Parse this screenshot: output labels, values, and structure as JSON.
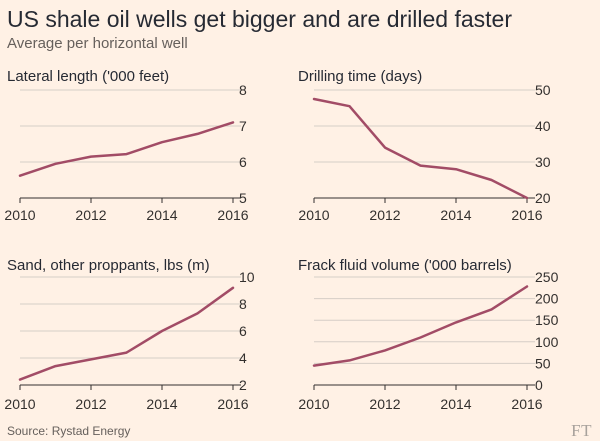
{
  "title": "US shale oil wells get bigger and are drilled faster",
  "subtitle": "Average per horizontal well",
  "source": "Source: Rystad Energy",
  "logo": "FT",
  "colors": {
    "background": "#fff1e5",
    "series": "#a24c66",
    "grid": "#d6cec6",
    "text": "#33302e"
  },
  "chart_data": [
    {
      "type": "line",
      "title": "Lateral length ('000 feet)",
      "x": [
        2010,
        2011,
        2012,
        2013,
        2014,
        2015,
        2016
      ],
      "values": [
        5.62,
        5.95,
        6.15,
        6.22,
        6.55,
        6.78,
        7.1
      ],
      "xticks": [
        "2010",
        "2012",
        "2014",
        "2016"
      ],
      "yticks": [
        "5",
        "6",
        "7",
        "8"
      ],
      "ylim": [
        5,
        8
      ],
      "grid": true
    },
    {
      "type": "line",
      "title": "Drilling time (days)",
      "x": [
        2010,
        2011,
        2012,
        2013,
        2014,
        2015,
        2016
      ],
      "values": [
        47.5,
        45.5,
        34,
        29,
        28,
        25,
        20
      ],
      "xticks": [
        "2010",
        "2012",
        "2014",
        "2016"
      ],
      "yticks": [
        "20",
        "30",
        "40",
        "50"
      ],
      "ylim": [
        20,
        50
      ],
      "grid": true
    },
    {
      "type": "line",
      "title": "Sand, other proppants, lbs (m)",
      "x": [
        2010,
        2011,
        2012,
        2013,
        2014,
        2015,
        2016
      ],
      "values": [
        2.4,
        3.4,
        3.9,
        4.4,
        6.0,
        7.3,
        9.2
      ],
      "xticks": [
        "2010",
        "2012",
        "2014",
        "2016"
      ],
      "yticks": [
        "2",
        "4",
        "6",
        "8",
        "10"
      ],
      "ylim": [
        2,
        10
      ],
      "grid": true
    },
    {
      "type": "line",
      "title": "Frack fluid volume ('000 barrels)",
      "x": [
        2010,
        2011,
        2012,
        2013,
        2014,
        2015,
        2016
      ],
      "values": [
        45,
        57,
        80,
        110,
        145,
        175,
        228
      ],
      "xticks": [
        "2010",
        "2012",
        "2014",
        "2016"
      ],
      "yticks": [
        "0",
        "50",
        "100",
        "150",
        "200",
        "250"
      ],
      "ylim": [
        0,
        250
      ],
      "grid": true
    }
  ]
}
